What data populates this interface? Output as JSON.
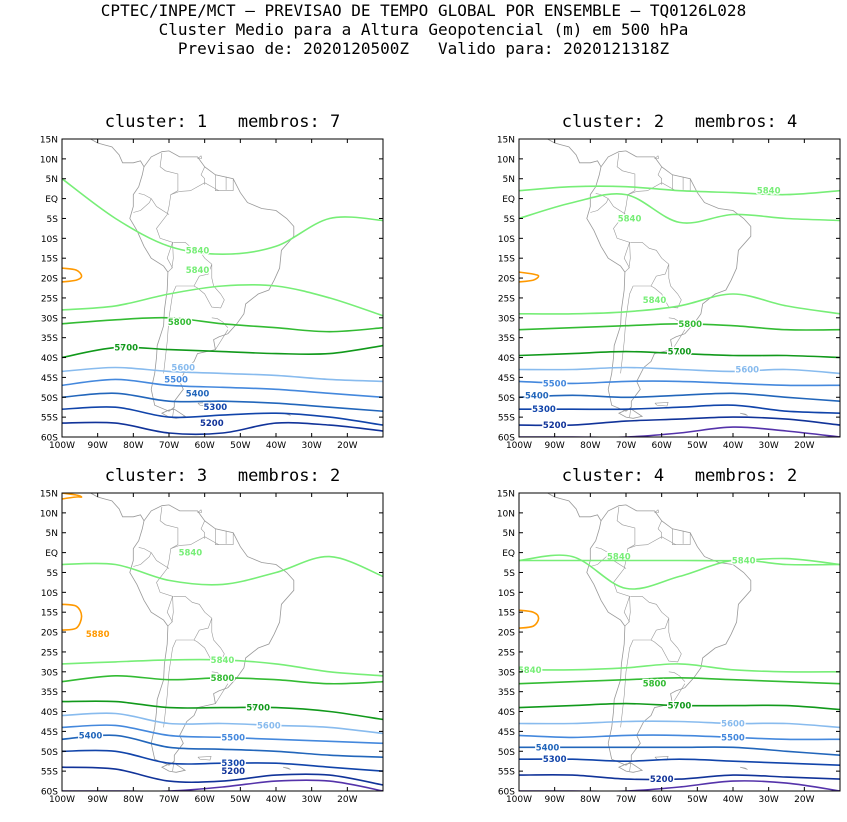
{
  "header": {
    "line1": "CPTEC/INPE/MCT – PREVISAO DE TEMPO GLOBAL POR ENSEMBLE – TQ0126L028",
    "line2": "Cluster Medio para a Altura Geopotencial (m) em 500 hPa",
    "line3": "Previsao de: 2020120500Z   Valido para: 2020121318Z"
  },
  "axes": {
    "lat_labels": [
      "15N",
      "10N",
      "5N",
      "EQ",
      "5S",
      "10S",
      "15S",
      "20S",
      "25S",
      "30S",
      "35S",
      "40S",
      "45S",
      "50S",
      "55S",
      "60S"
    ],
    "lon_labels": [
      "100W",
      "90W",
      "80W",
      "70W",
      "60W",
      "50W",
      "40W",
      "30W",
      "20W"
    ]
  },
  "colors": {
    "5880": "#ff9900",
    "5840": "#77ee77",
    "5800": "#33bb33",
    "5700": "#11991b",
    "5600": "#88bbee",
    "5500": "#4488dd",
    "5400": "#2266bb",
    "5300": "#1144aa",
    "5200": "#113399",
    "5100": "#5533aa",
    "coast": "#999999"
  },
  "panels": [
    {
      "title": "cluster: 1   membros: 7",
      "contours": [
        {
          "level": "5880",
          "lat": [
            -17.5,
            -19.5,
            -21
          ]
        },
        {
          "level": "5840",
          "lat": [
            -28,
            -27,
            -24,
            -22,
            -22,
            -25,
            -29.5
          ],
          "label_lon": -62,
          "label_lat": -18
        },
        {
          "level": "5840",
          "lat": [
            5,
            -5,
            -12,
            -14,
            -12,
            -5,
            -5.5
          ],
          "label_lon": -62,
          "label_lat": -13
        },
        {
          "level": "5800",
          "lat": [
            -31.5,
            -30.5,
            -30,
            -31.5,
            -32.5,
            -33.5,
            -32.5
          ],
          "label_lon": -67,
          "label_lat": -31
        },
        {
          "level": "5700",
          "lat": [
            -40,
            -37.5,
            -38,
            -38.5,
            -39,
            -39,
            -37
          ],
          "label_lon": -82,
          "label_lat": -37.5
        },
        {
          "level": "5600",
          "lat": [
            -43.5,
            -42.5,
            -43.5,
            -44,
            -44.5,
            -45.5,
            -46
          ],
          "label_lon": -66,
          "label_lat": -42.5
        },
        {
          "level": "5500",
          "lat": [
            -47,
            -45.5,
            -47,
            -47.5,
            -48,
            -49,
            -50
          ],
          "label_lon": -68,
          "label_lat": -45.5
        },
        {
          "level": "5400",
          "lat": [
            -50,
            -49,
            -51,
            -51,
            -51.5,
            -52.5,
            -53.5
          ],
          "label_lon": -62,
          "label_lat": -49
        },
        {
          "level": "5300",
          "lat": [
            -53,
            -52.5,
            -55,
            -54.5,
            -54,
            -55,
            -57
          ],
          "label_lon": -57,
          "label_lat": -52.5
        },
        {
          "level": "5200",
          "lat": [
            -56.5,
            -56.5,
            -59,
            -59,
            -56.5,
            -57,
            -58.5
          ],
          "label_lon": -58,
          "label_lat": -56.5
        }
      ]
    },
    {
      "title": "cluster: 2   membros: 4",
      "contours": [
        {
          "level": "5880",
          "lat": [
            -18.5,
            -19.5,
            -21
          ]
        },
        {
          "level": "5840",
          "lat": [
            -29,
            -29,
            -28.5,
            -27,
            -24,
            -27,
            -29
          ],
          "label_lon": -62,
          "label_lat": -25.5
        },
        {
          "level": "5840",
          "lat": [
            -5,
            -1,
            1,
            -6,
            -4,
            -5,
            -5.5
          ],
          "label_lon": -69,
          "label_lat": -5
        },
        {
          "level": "5840",
          "lat": [
            2,
            3,
            3,
            2,
            1.5,
            1,
            2
          ],
          "label_lon": -30,
          "label_lat": 2
        },
        {
          "level": "5800",
          "lat": [
            -33,
            -32.5,
            -32,
            -31.5,
            -32,
            -33,
            -33
          ],
          "label_lon": -52,
          "label_lat": -31.5
        },
        {
          "level": "5700",
          "lat": [
            -39.5,
            -39,
            -38.5,
            -39,
            -39.5,
            -39.5,
            -40
          ],
          "label_lon": -55,
          "label_lat": -38.5
        },
        {
          "level": "5600",
          "lat": [
            -43,
            -43,
            -42.5,
            -43,
            -43.5,
            -43,
            -44
          ],
          "label_lon": -36,
          "label_lat": -43
        },
        {
          "level": "5500",
          "lat": [
            -46,
            -46.5,
            -46,
            -46,
            -46.5,
            -47,
            -47
          ],
          "label_lon": -90,
          "label_lat": -46.5
        },
        {
          "level": "5400",
          "lat": [
            -50,
            -49.5,
            -50,
            -49.5,
            -49,
            -50,
            -51
          ],
          "label_lon": -95,
          "label_lat": -49.5
        },
        {
          "level": "5300",
          "lat": [
            -53,
            -53,
            -53,
            -52.5,
            -52,
            -53.5,
            -54
          ],
          "label_lon": -93,
          "label_lat": -53
        },
        {
          "level": "5200",
          "lat": [
            -57,
            -57,
            -56,
            -55.5,
            -55,
            -55.5,
            -57
          ],
          "label_lon": -90,
          "label_lat": -57
        },
        {
          "level": "5100",
          "lat": [
            -60,
            -60,
            -60,
            -59,
            -57.5,
            -58.5,
            -60
          ]
        }
      ]
    },
    {
      "title": "cluster: 3   membros: 2",
      "contours": [
        {
          "level": "5880",
          "lat": [
            15,
            14,
            13.5
          ]
        },
        {
          "level": "5880",
          "lat": [
            -13,
            -16,
            -19.5
          ],
          "label_lon": -90,
          "label_lat": -20.5
        },
        {
          "level": "5840",
          "lat": [
            -28,
            -27.5,
            -27,
            -27,
            -28,
            -30,
            -31
          ],
          "label_lon": -55,
          "label_lat": -27
        },
        {
          "level": "5840",
          "lat": [
            -3,
            -3,
            -7,
            -8,
            -5,
            -1,
            -6
          ],
          "label_lon": -64,
          "label_lat": 0
        },
        {
          "level": "5800",
          "lat": [
            -32.5,
            -31,
            -32,
            -31.5,
            -32,
            -33,
            -32.5
          ],
          "label_lon": -55,
          "label_lat": -31.5
        },
        {
          "level": "5700",
          "lat": [
            -37.5,
            -37.5,
            -39,
            -39,
            -39,
            -40,
            -42
          ],
          "label_lon": -45,
          "label_lat": -39
        },
        {
          "level": "5600",
          "lat": [
            -41,
            -40.5,
            -43,
            -43,
            -43.5,
            -44,
            -45.5
          ],
          "label_lon": -42,
          "label_lat": -43.5
        },
        {
          "level": "5500",
          "lat": [
            -44,
            -43.5,
            -46,
            -46.5,
            -47,
            -47.5,
            -48
          ],
          "label_lon": -52,
          "label_lat": -46.5
        },
        {
          "level": "5400",
          "lat": [
            -47,
            -46,
            -49,
            -49.5,
            -50,
            -51,
            -51.5
          ],
          "label_lon": -92,
          "label_lat": -46
        },
        {
          "level": "5300",
          "lat": [
            -50,
            -50,
            -53,
            -53,
            -53,
            -54,
            -55
          ],
          "label_lon": -52,
          "label_lat": -53
        },
        {
          "level": "5200",
          "lat": [
            -54,
            -54.5,
            -57.5,
            -57.5,
            -56,
            -56,
            -58.5
          ],
          "label_lon": -52,
          "label_lat": -55
        },
        {
          "level": "5100",
          "lat": [
            -60,
            -60,
            -60,
            -59,
            -57.5,
            -57.5,
            -60
          ]
        }
      ]
    },
    {
      "title": "cluster: 4   membros: 2",
      "contours": [
        {
          "level": "5880",
          "lat": [
            -14.5,
            -16.5,
            -19
          ]
        },
        {
          "level": "5840",
          "lat": [
            -29.5,
            -29.5,
            -29,
            -28,
            -29.5,
            -30,
            -30
          ],
          "label_lon": -97,
          "label_lat": -29.5
        },
        {
          "level": "5840",
          "lat": [
            -2,
            -1,
            -9,
            -6,
            -2,
            -3,
            -3
          ],
          "label_lon": -72,
          "label_lat": -1
        },
        {
          "level": "5840",
          "lat": [
            -2,
            -2,
            -2,
            -2,
            -2,
            -1.5,
            -3
          ],
          "label_lon": -37,
          "label_lat": -2
        },
        {
          "level": "5800",
          "lat": [
            -33,
            -32.5,
            -32,
            -31.5,
            -32,
            -32.5,
            -33
          ],
          "label_lon": -62,
          "label_lat": -33
        },
        {
          "level": "5700",
          "lat": [
            -39,
            -38.5,
            -38,
            -38.5,
            -38.5,
            -38.5,
            -39.5
          ],
          "label_lon": -55,
          "label_lat": -38.5
        },
        {
          "level": "5600",
          "lat": [
            -43,
            -43,
            -42.5,
            -42.5,
            -43,
            -43,
            -44
          ],
          "label_lon": -40,
          "label_lat": -43
        },
        {
          "level": "5500",
          "lat": [
            -46,
            -46.5,
            -46,
            -46,
            -46.5,
            -47,
            -47
          ],
          "label_lon": -40,
          "label_lat": -46.5
        },
        {
          "level": "5400",
          "lat": [
            -49,
            -49,
            -49,
            -49,
            -49,
            -50,
            -51
          ],
          "label_lon": -92,
          "label_lat": -49
        },
        {
          "level": "5300",
          "lat": [
            -52,
            -52,
            -52.5,
            -52,
            -52.5,
            -53,
            -53.5
          ],
          "label_lon": -90,
          "label_lat": -52
        },
        {
          "level": "5200",
          "lat": [
            -56,
            -56,
            -57,
            -57,
            -56,
            -56.5,
            -57
          ],
          "label_lon": -60,
          "label_lat": -57
        },
        {
          "level": "5100",
          "lat": [
            -60,
            -60,
            -60,
            -59,
            -57.5,
            -58,
            -60
          ]
        }
      ]
    }
  ]
}
